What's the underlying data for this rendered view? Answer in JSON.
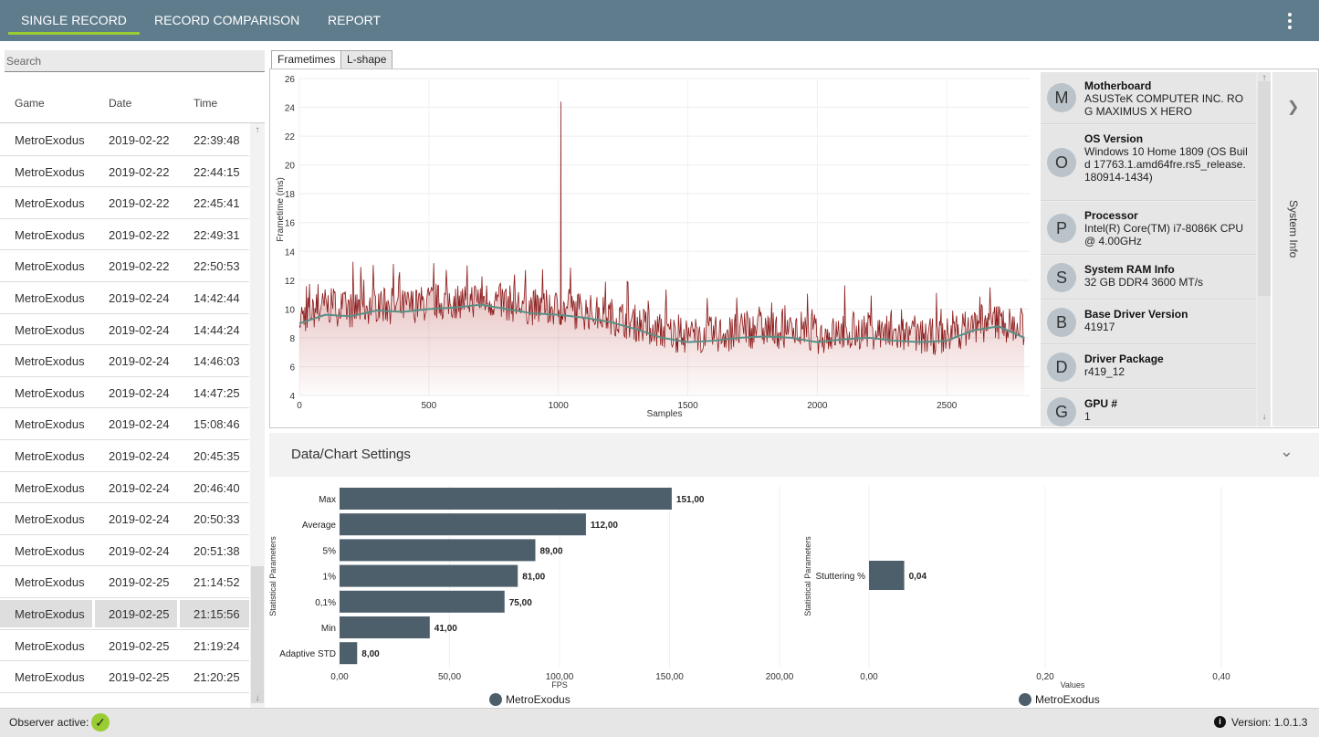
{
  "header": {
    "tabs": [
      {
        "label": "SINGLE RECORD",
        "active": true
      },
      {
        "label": "RECORD COMPARISON",
        "active": false
      },
      {
        "label": "REPORT",
        "active": false
      }
    ],
    "menu_icon": "more-vertical-icon"
  },
  "records": {
    "search_placeholder": "Search",
    "columns": [
      "Game",
      "Date",
      "Time"
    ],
    "rows": [
      {
        "game": "MetroExodus",
        "date": "2019-02-22",
        "time": "22:39:48"
      },
      {
        "game": "MetroExodus",
        "date": "2019-02-22",
        "time": "22:44:15"
      },
      {
        "game": "MetroExodus",
        "date": "2019-02-22",
        "time": "22:45:41"
      },
      {
        "game": "MetroExodus",
        "date": "2019-02-22",
        "time": "22:49:31"
      },
      {
        "game": "MetroExodus",
        "date": "2019-02-22",
        "time": "22:50:53"
      },
      {
        "game": "MetroExodus",
        "date": "2019-02-24",
        "time": "14:42:44"
      },
      {
        "game": "MetroExodus",
        "date": "2019-02-24",
        "time": "14:44:24"
      },
      {
        "game": "MetroExodus",
        "date": "2019-02-24",
        "time": "14:46:03"
      },
      {
        "game": "MetroExodus",
        "date": "2019-02-24",
        "time": "14:47:25"
      },
      {
        "game": "MetroExodus",
        "date": "2019-02-24",
        "time": "15:08:46"
      },
      {
        "game": "MetroExodus",
        "date": "2019-02-24",
        "time": "20:45:35"
      },
      {
        "game": "MetroExodus",
        "date": "2019-02-24",
        "time": "20:46:40"
      },
      {
        "game": "MetroExodus",
        "date": "2019-02-24",
        "time": "20:50:33"
      },
      {
        "game": "MetroExodus",
        "date": "2019-02-24",
        "time": "20:51:38"
      },
      {
        "game": "MetroExodus",
        "date": "2019-02-25",
        "time": "21:14:52"
      },
      {
        "game": "MetroExodus",
        "date": "2019-02-25",
        "time": "21:15:56",
        "selected": true
      },
      {
        "game": "MetroExodus",
        "date": "2019-02-25",
        "time": "21:19:24"
      },
      {
        "game": "MetroExodus",
        "date": "2019-02-25",
        "time": "21:20:25"
      }
    ]
  },
  "chart_tabs": [
    {
      "label": "Frametimes",
      "active": true
    },
    {
      "label": "L-shape",
      "active": false
    }
  ],
  "system_info": {
    "side_label": "System Info",
    "items": [
      {
        "letter": "M",
        "title": "Motherboard",
        "value": "ASUSTeK COMPUTER INC. ROG MAXIMUS X HERO"
      },
      {
        "letter": "O",
        "title": "OS Version",
        "value": "Windows 10 Home 1809 (OS Build 17763.1.amd64fre.rs5_release.180914-1434)"
      },
      {
        "letter": "P",
        "title": "Processor",
        "value": "Intel(R) Core(TM) i7-8086K CPU @ 4.00GHz"
      },
      {
        "letter": "S",
        "title": "System RAM Info",
        "value": "32 GB DDR4 3600 MT/s"
      },
      {
        "letter": "B",
        "title": "Base Driver Version",
        "value": "41917"
      },
      {
        "letter": "D",
        "title": "Driver Package",
        "value": "r419_12"
      },
      {
        "letter": "G",
        "title": "GPU #",
        "value": "1"
      }
    ]
  },
  "settings": {
    "label": "Data/Chart Settings"
  },
  "footer": {
    "observer_label": "Observer active:",
    "version_label": "Version:",
    "version": "1.0.1.3"
  },
  "colors": {
    "header": "#5f7c8c",
    "accent": "#9acd32",
    "frametime_line": "#8b1a1a",
    "moving_average": "#5a8f86",
    "bar": "#4d5f6b"
  },
  "chart_data": [
    {
      "type": "line",
      "xlabel": "Samples",
      "ylabel": "Frametime (ms)",
      "xlim": [
        0,
        2820
      ],
      "ylim": [
        4,
        26
      ],
      "x_ticks": [
        0,
        500,
        1000,
        1500,
        2000,
        2500
      ],
      "y_ticks": [
        4,
        6,
        8,
        10,
        12,
        14,
        16,
        18,
        20,
        22,
        24,
        26
      ],
      "grid": true,
      "series": [
        {
          "role": "frametimes",
          "x": [
            0,
            100,
            200,
            300,
            400,
            500,
            600,
            700,
            800,
            900,
            1000,
            1010,
            1020,
            1100,
            1200,
            1300,
            1400,
            1500,
            1600,
            1700,
            1800,
            1900,
            2000,
            2100,
            2200,
            2300,
            2400,
            2500,
            2600,
            2700,
            2800
          ],
          "y": [
            9.3,
            10.1,
            9.8,
            10.2,
            10.0,
            10.3,
            10.4,
            10.6,
            10.3,
            10.0,
            9.9,
            24.4,
            9.8,
            9.7,
            9.4,
            8.9,
            8.3,
            8.0,
            8.1,
            8.3,
            8.5,
            8.3,
            8.0,
            8.2,
            8.4,
            8.1,
            7.9,
            8.0,
            8.7,
            9.0,
            8.4
          ]
        },
        {
          "role": "moving average",
          "x": [
            0,
            100,
            200,
            300,
            400,
            500,
            600,
            700,
            800,
            900,
            1000,
            1100,
            1200,
            1300,
            1400,
            1500,
            1600,
            1700,
            1800,
            1900,
            2000,
            2100,
            2200,
            2300,
            2400,
            2500,
            2600,
            2700,
            2800
          ],
          "y": [
            9.0,
            9.6,
            9.5,
            9.9,
            9.8,
            10.0,
            10.1,
            10.3,
            10.0,
            9.7,
            9.6,
            9.4,
            9.1,
            8.6,
            8.0,
            7.7,
            7.8,
            8.0,
            8.1,
            8.0,
            7.7,
            7.9,
            8.0,
            7.8,
            7.7,
            7.8,
            8.5,
            8.8,
            8.0
          ]
        }
      ]
    },
    {
      "type": "bar",
      "orientation": "horizontal",
      "ylabel": "Statistical Parameters",
      "xlabel": "FPS",
      "categories": [
        "Max",
        "Average",
        "5%",
        "1%",
        "0,1%",
        "Min",
        "Adaptive STD"
      ],
      "values": [
        151.0,
        112.0,
        89.0,
        81.0,
        75.0,
        41.0,
        8.0
      ],
      "value_labels": [
        "151,00",
        "112,00",
        "89,00",
        "81,00",
        "75,00",
        "41,00",
        "8,00"
      ],
      "x_ticks": [
        "0,00",
        "50,00",
        "100,00",
        "150,00",
        "200,00"
      ],
      "xlim": [
        0,
        200
      ],
      "legend": [
        "MetroExodus"
      ]
    },
    {
      "type": "bar",
      "orientation": "horizontal",
      "ylabel": "Statistical Parameters",
      "xlabel": "Values",
      "categories": [
        "Stuttering %"
      ],
      "values": [
        0.04
      ],
      "value_labels": [
        "0,04"
      ],
      "x_ticks": [
        "0,00",
        "0,20",
        "0,40"
      ],
      "xlim": [
        0,
        0.4
      ],
      "legend": [
        "MetroExodus"
      ]
    }
  ]
}
